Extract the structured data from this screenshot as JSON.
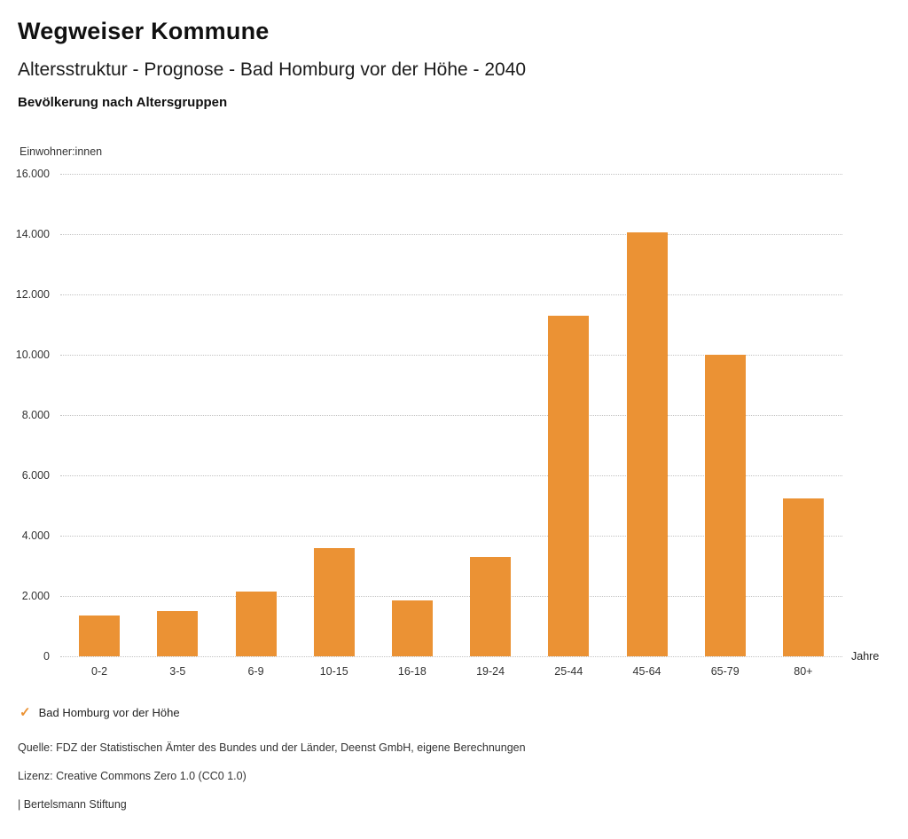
{
  "header": {
    "title": "Wegweiser Kommune",
    "subtitle": "Altersstruktur - Prognose - Bad Homburg vor der Höhe - 2040",
    "caption": "Bevölkerung nach Altersgruppen"
  },
  "chart_data": {
    "type": "bar",
    "title": "Bevölkerung nach Altersgruppen",
    "ylabel": "Einwohner:innen",
    "xlabel": "Jahre",
    "categories": [
      "0-2",
      "3-5",
      "6-9",
      "10-15",
      "16-18",
      "19-24",
      "25-44",
      "45-64",
      "65-79",
      "80+"
    ],
    "values": [
      1350,
      1500,
      2150,
      3600,
      1850,
      3300,
      11300,
      14050,
      10000,
      5250
    ],
    "ylim": [
      0,
      16000
    ],
    "yticks": [
      {
        "value": 0,
        "label": "0"
      },
      {
        "value": 2000,
        "label": "2.000"
      },
      {
        "value": 4000,
        "label": "4.000"
      },
      {
        "value": 6000,
        "label": "6.000"
      },
      {
        "value": 8000,
        "label": "8.000"
      },
      {
        "value": 10000,
        "label": "10.000"
      },
      {
        "value": 12000,
        "label": "12.000"
      },
      {
        "value": 14000,
        "label": "14.000"
      },
      {
        "value": 16000,
        "label": "16.000"
      }
    ],
    "bar_color": "#EB9234",
    "grid": "horizontal-dotted",
    "legend_position": "bottom-left",
    "series_name": "Bad Homburg vor der Höhe"
  },
  "legend": {
    "marker_color": "#EB9234",
    "label": "Bad Homburg vor der Höhe",
    "check": "✓"
  },
  "footer": {
    "source": "Quelle: FDZ der Statistischen Ämter des Bundes und der Länder, Deenst GmbH, eigene Berechnungen",
    "license": "Lizenz: Creative Commons Zero 1.0 (CC0 1.0)",
    "attribution": "| Bertelsmann Stiftung"
  }
}
